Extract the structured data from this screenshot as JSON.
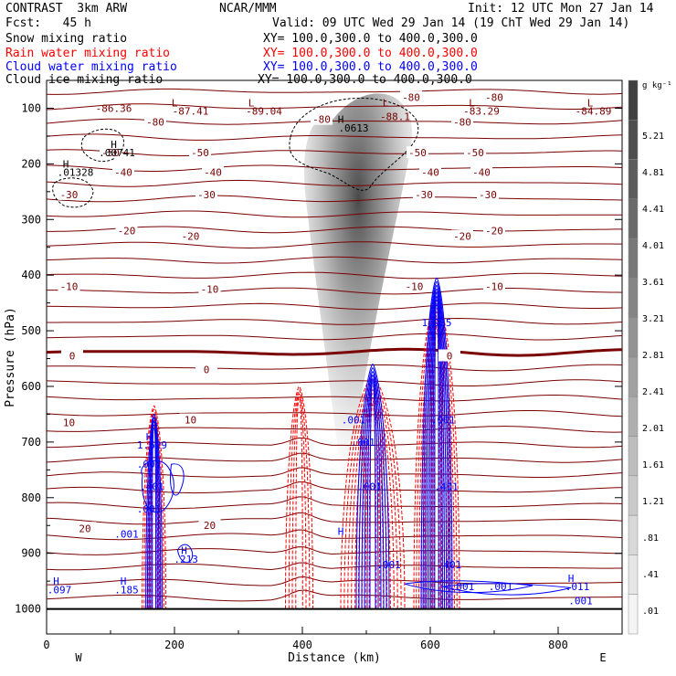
{
  "header": {
    "line1_left": "CONTRAST  3km ARW",
    "line1_center": "NCAR/MMM",
    "line1_right": "Init: 12 UTC Mon 27 Jan 14",
    "line2_left": "Fcst:   45 h",
    "line2_right": "Valid: 09 UTC Wed 29 Jan 14 (19 ChT Wed 29 Jan 14)",
    "xy_text": "XY= 100.0,300.0 to 400.0,300.0"
  },
  "colors": {
    "snow": "#000000",
    "rain": "#ff0000",
    "cloud_water": "#0000ff",
    "cloud_ice": "#000000",
    "temperature": "#7a0000"
  },
  "chart_data": {
    "type": "contour",
    "fields": [
      {
        "name": "Snow mixing ratio",
        "style": "shaded gray"
      },
      {
        "name": "Rain water mixing ratio",
        "style": "dashed red"
      },
      {
        "name": "Cloud water mixing ratio",
        "style": "solid blue"
      },
      {
        "name": "Cloud ice mixing ratio",
        "style": "dashed black"
      }
    ],
    "xlabel": "Distance (km)",
    "ylabel": "Pressure (hPa)",
    "x_ticks": [
      0,
      200,
      400,
      600,
      800
    ],
    "xlim": [
      0,
      900
    ],
    "y_ticks": [
      100,
      200,
      300,
      400,
      500,
      600,
      700,
      800,
      900,
      1000
    ],
    "ylim": [
      50,
      1045
    ],
    "y_direction": "inverted",
    "x_end_labels": {
      "left": "W",
      "right": "E"
    },
    "colorbar": {
      "unit": "g kg⁻¹",
      "labels": [
        "5.21",
        "4.81",
        "4.41",
        "4.01",
        "3.61",
        "3.21",
        "2.81",
        "2.41",
        "2.01",
        "1.61",
        "1.21",
        ".81",
        ".41",
        ".01"
      ]
    },
    "temperature_labels": [
      {
        "text": "-80",
        "x": 170,
        "p": 125
      },
      {
        "text": "-80",
        "x": 650,
        "p": 125
      },
      {
        "text": "-80",
        "x": 700,
        "p": 80
      },
      {
        "text": "-80",
        "x": 570,
        "p": 80
      },
      {
        "text": "-80",
        "x": 430,
        "p": 120
      },
      {
        "text": "-50",
        "x": 100,
        "p": 180
      },
      {
        "text": "-50",
        "x": 240,
        "p": 180
      },
      {
        "text": "-50",
        "x": 580,
        "p": 180
      },
      {
        "text": "-50",
        "x": 670,
        "p": 180
      },
      {
        "text": "-40",
        "x": 120,
        "p": 215
      },
      {
        "text": "-40",
        "x": 260,
        "p": 215
      },
      {
        "text": "-40",
        "x": 600,
        "p": 215
      },
      {
        "text": "-40",
        "x": 680,
        "p": 215
      },
      {
        "text": "-30",
        "x": 35,
        "p": 255
      },
      {
        "text": "-30",
        "x": 250,
        "p": 255
      },
      {
        "text": "-30",
        "x": 590,
        "p": 255
      },
      {
        "text": "-30",
        "x": 690,
        "p": 255
      },
      {
        "text": "-20",
        "x": 125,
        "p": 320
      },
      {
        "text": "-20",
        "x": 225,
        "p": 330
      },
      {
        "text": "-20",
        "x": 650,
        "p": 330
      },
      {
        "text": "-20",
        "x": 700,
        "p": 320
      },
      {
        "text": "-10",
        "x": 35,
        "p": 420
      },
      {
        "text": "-10",
        "x": 255,
        "p": 425
      },
      {
        "text": "-10",
        "x": 575,
        "p": 420
      },
      {
        "text": "-10",
        "x": 700,
        "p": 420
      },
      {
        "text": "0",
        "x": 40,
        "p": 545
      },
      {
        "text": "0",
        "x": 250,
        "p": 570
      },
      {
        "text": "0",
        "x": 630,
        "p": 545
      },
      {
        "text": "10",
        "x": 35,
        "p": 665
      },
      {
        "text": "10",
        "x": 225,
        "p": 660
      },
      {
        "text": "20",
        "x": 60,
        "p": 855
      },
      {
        "text": "20",
        "x": 255,
        "p": 850
      }
    ],
    "extrema_labels": [
      {
        "text": "-86.36",
        "x": 105,
        "p": 100
      },
      {
        "text": "L",
        "x": 200,
        "p": 90
      },
      {
        "text": "-87.41",
        "x": 225,
        "p": 105
      },
      {
        "text": "L",
        "x": 320,
        "p": 90
      },
      {
        "text": "-89.04",
        "x": 340,
        "p": 105
      },
      {
        "text": "H",
        "x": 460,
        "p": 120
      },
      {
        "text": ".0613",
        "x": 480,
        "p": 135
      },
      {
        "text": "L",
        "x": 530,
        "p": 90
      },
      {
        "text": "-88.1",
        "x": 545,
        "p": 115
      },
      {
        "text": "L",
        "x": 665,
        "p": 90
      },
      {
        "text": "-83.29",
        "x": 680,
        "p": 105
      },
      {
        "text": "L",
        "x": 850,
        "p": 90
      },
      {
        "text": "-84.89",
        "x": 855,
        "p": 105
      },
      {
        "text": "H",
        "x": 105,
        "p": 165
      },
      {
        "text": ".00741",
        "x": 110,
        "p": 180
      },
      {
        "text": "H",
        "x": 30,
        "p": 200
      },
      {
        "text": ".01328",
        "x": 45,
        "p": 215
      },
      {
        "text": "H",
        "x": 160,
        "p": 690
      },
      {
        "text": "1.629",
        "x": 165,
        "p": 705
      },
      {
        "text": ".001",
        "x": 160,
        "p": 740
      },
      {
        "text": ".401",
        "x": 165,
        "p": 780
      },
      {
        "text": ".001",
        "x": 160,
        "p": 820
      },
      {
        "text": ".001",
        "x": 125,
        "p": 865
      },
      {
        "text": "H",
        "x": 215,
        "p": 895
      },
      {
        "text": ".213",
        "x": 218,
        "p": 910
      },
      {
        "text": "H",
        "x": 15,
        "p": 950
      },
      {
        "text": ".097",
        "x": 20,
        "p": 965
      },
      {
        "text": "H",
        "x": 120,
        "p": 950
      },
      {
        "text": ".185",
        "x": 125,
        "p": 965
      },
      {
        "text": "H",
        "x": 460,
        "p": 860
      },
      {
        "text": ".001",
        "x": 480,
        "p": 660
      },
      {
        "text": ".001",
        "x": 495,
        "p": 700
      },
      {
        "text": ".001",
        "x": 505,
        "p": 780
      },
      {
        "text": ".001",
        "x": 535,
        "p": 920
      },
      {
        "text": "H",
        "x": 604,
        "p": 465
      },
      {
        "text": "1.935",
        "x": 610,
        "p": 485
      },
      {
        "text": ".001",
        "x": 620,
        "p": 660
      },
      {
        "text": ".401",
        "x": 625,
        "p": 780
      },
      {
        "text": ".401",
        "x": 630,
        "p": 920
      },
      {
        "text": ".001",
        "x": 650,
        "p": 960
      },
      {
        "text": ".001",
        "x": 710,
        "p": 960
      },
      {
        "text": "H",
        "x": 820,
        "p": 945
      },
      {
        "text": ".011",
        "x": 830,
        "p": 960
      },
      {
        "text": ".001",
        "x": 835,
        "p": 985
      }
    ]
  }
}
